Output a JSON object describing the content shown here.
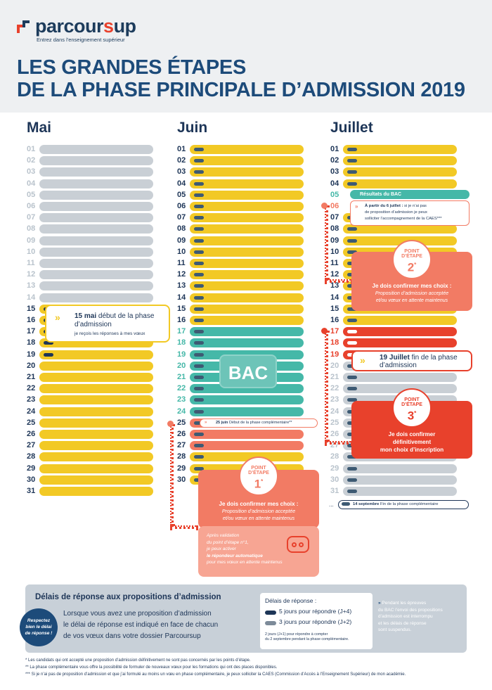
{
  "brand": {
    "part1": "parcour",
    "part2": "s",
    "part3": "up",
    "tagline": "Entrez dans l'enseignement supérieur"
  },
  "title": {
    "line1": "LES GRANDES ÉTAPES",
    "line2": "DE LA PHASE PRINCIPALE D’ADMISSION 2019"
  },
  "months": {
    "may": "Mai",
    "june": "Juin",
    "july": "Juillet"
  },
  "days": [
    "01",
    "02",
    "03",
    "04",
    "05",
    "06",
    "07",
    "08",
    "09",
    "10",
    "11",
    "12",
    "13",
    "14",
    "15",
    "16",
    "17",
    "18",
    "19",
    "20",
    "21",
    "22",
    "23",
    "24",
    "25",
    "26",
    "27",
    "28",
    "29",
    "30",
    "31"
  ],
  "colors": {
    "gray": "#c9cfd5",
    "yellow": "#f2c925",
    "teal": "#45b8a8",
    "salmon": "#f27b64",
    "red": "#e8412c",
    "navy": "#1d3557"
  },
  "may_card": {
    "date": "15 mai",
    "text": " début de la phase d’admission",
    "sub": "je reçois les réponses à mes vœux"
  },
  "bac": "BAC",
  "june_callout": {
    "date": "25 juin",
    "text": " Début de la phase complémentaire**"
  },
  "step1": {
    "label1": "POINT",
    "label2": "D’ÉTAPE",
    "num": "1",
    "sup": "*",
    "head": "Je dois confirmer mes choix :",
    "body1": "Proposition d’admission acceptée",
    "body2": "et/ou vœux en attente maintenus",
    "extra1": "Après validation",
    "extra2": "du point d’étape n°1,",
    "extra3": "je peux activer",
    "extra4": "le répondeur automatique",
    "extra5": "pour mes vœux en attente maintenus"
  },
  "july_result": "Résultats du BAC",
  "july_caes": {
    "date": "À partir du 6 juillet :",
    "l1": " si je n’ai pas",
    "l2": "de proposition d’admission je peux",
    "l3": "solliciter l’accompagnement de la CAES***"
  },
  "step2": {
    "label1": "POINT",
    "label2": "D’ÉTAPE",
    "num": "2",
    "sup": "*",
    "head": "Je dois confirmer mes choix :",
    "body1": "Proposition d’admission acceptée",
    "body2": "et/ou vœux en attente maintenus"
  },
  "july19": {
    "date": "19 Juillet",
    "text": " fin de la phase d’admission"
  },
  "step3": {
    "label1": "POINT",
    "label2": "D’ÉTAPE",
    "num": "3",
    "sup": "*",
    "l1": "Je dois confirmer",
    "l2": "définitivement",
    "l3": "mon choix d’inscription"
  },
  "sept": {
    "date": "14 septembre",
    "text": " Fin de la phase complémentaire"
  },
  "bottom": {
    "title": "Délais de réponse aux propositions d’admission",
    "stamp1": "Respectez",
    "stamp2": "bien le délai",
    "stamp3": "de réponse !",
    "p1": "Lorsque vous avez une proposition d’admission",
    "p2": "le délai de réponse est indiqué en face de chacun",
    "p3": "de vos vœux dans votre dossier Parcoursup",
    "legend_title": "Délais de réponse :",
    "leg1": "5 jours pour répondre (J+4)",
    "leg2": "3 jours pour répondre (J+2)",
    "leg3a": "2 jours (J+1) pour répondre à compter",
    "leg3b": "du 2 septembre pendant la phase complémentaire.",
    "side1": "Pendant les épreuves",
    "side2": "du BAC l’envoi des propositions",
    "side3": "d’admission est interrompu",
    "side4": "et les délais de réponse",
    "side5": "sont suspendus."
  },
  "footnotes": {
    "f1": "* Les candidats qui ont accepté une proposition d’admission définitivement ne sont pas concernés par les points d’étape.",
    "f2": "** La phase complémentaire vous offre la possibilité de formuler de nouveaux vœux pour les formations qui ont des places disponibles.",
    "f3": "*** Si je n’ai pas de proposition d’admission et que j’ai formulé au moins un vœu en phase complémentaire, je peux solliciter la CAES (Commission d’Accès à l’Enseignement Supérieur) de mon académie."
  }
}
